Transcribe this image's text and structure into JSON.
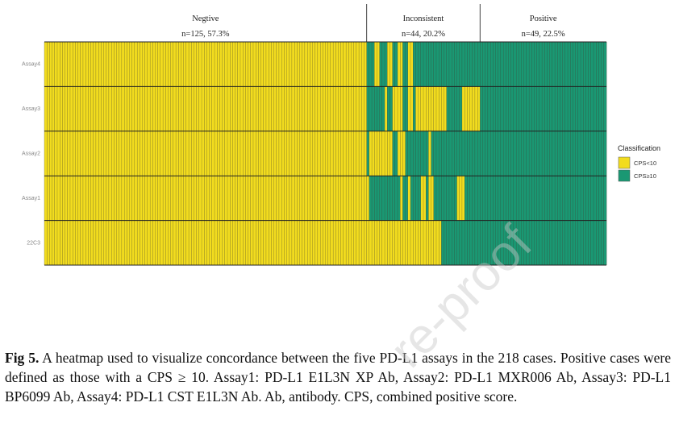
{
  "chart_data": {
    "type": "heatmap",
    "title": "",
    "rows": [
      "Assay4",
      "Assay3",
      "Assay2",
      "Assay1",
      "22C3"
    ],
    "n_cases": 218,
    "groups": [
      {
        "name": "Negtive",
        "stats": "n=125, 57.3%",
        "count": 125
      },
      {
        "name": "Inconsistent",
        "stats": "n=44, 20.2%",
        "count": 44
      },
      {
        "name": "Positive",
        "stats": "n=49, 22.5%",
        "count": 49
      }
    ],
    "legend": {
      "title": "Classification",
      "position": "right",
      "entries": [
        {
          "label": "CPS<10",
          "color": "#F2DC1E"
        },
        {
          "label": "CPS≥10",
          "color": "#1A9873"
        }
      ]
    },
    "row_runs": {
      "Assay4": [
        [
          0,
          125,
          0
        ],
        [
          125,
          3,
          1
        ],
        [
          128,
          2,
          0
        ],
        [
          130,
          3,
          1
        ],
        [
          133,
          2,
          0
        ],
        [
          135,
          2,
          1
        ],
        [
          137,
          2,
          0
        ],
        [
          139,
          2,
          1
        ],
        [
          141,
          2,
          0
        ],
        [
          143,
          26,
          1
        ],
        [
          169,
          49,
          1
        ]
      ],
      "Assay3": [
        [
          0,
          125,
          0
        ],
        [
          125,
          7,
          1
        ],
        [
          132,
          1,
          0
        ],
        [
          133,
          2,
          1
        ],
        [
          135,
          4,
          0
        ],
        [
          139,
          2,
          1
        ],
        [
          141,
          2,
          0
        ],
        [
          143,
          1,
          1
        ],
        [
          144,
          12,
          0
        ],
        [
          156,
          6,
          1
        ],
        [
          162,
          7,
          0
        ],
        [
          169,
          49,
          1
        ]
      ],
      "Assay2": [
        [
          0,
          125,
          0
        ],
        [
          125,
          1,
          1
        ],
        [
          126,
          8,
          0
        ],
        [
          134,
          1,
          1
        ],
        [
          134,
          1,
          0
        ],
        [
          135,
          2,
          1
        ],
        [
          137,
          3,
          0
        ],
        [
          140,
          9,
          1
        ],
        [
          149,
          1,
          0
        ],
        [
          150,
          19,
          1
        ],
        [
          169,
          49,
          1
        ]
      ],
      "Assay1": [
        [
          0,
          125,
          0
        ],
        [
          125,
          1,
          0
        ],
        [
          126,
          12,
          1
        ],
        [
          138,
          1,
          0
        ],
        [
          139,
          2,
          1
        ],
        [
          141,
          1,
          0
        ],
        [
          142,
          4,
          1
        ],
        [
          146,
          2,
          0
        ],
        [
          148,
          1,
          1
        ],
        [
          149,
          2,
          0
        ],
        [
          151,
          9,
          1
        ],
        [
          160,
          2,
          0
        ],
        [
          162,
          1,
          1
        ],
        [
          162,
          1,
          0
        ],
        [
          163,
          6,
          1
        ],
        [
          169,
          49,
          1
        ]
      ],
      "22C3": [
        [
          0,
          125,
          0
        ],
        [
          125,
          29,
          0
        ],
        [
          154,
          15,
          1
        ],
        [
          169,
          49,
          1
        ]
      ]
    },
    "value_map": {
      "0": "CPS<10",
      "1": "CPS≥10"
    }
  },
  "caption": {
    "label": "Fig 5.",
    "text": " A heatmap used to visualize concordance between the five PD-L1 assays in the 218 cases. Positive cases were defined as those with a CPS ≥ 10. Assay1: PD-L1 E1L3N XP Ab, Assay2: PD-L1 MXR006 Ab, Assay3: PD-L1 BP6099 Ab, Assay4: PD-L1 CST E1L3N Ab. Ab, antibody. CPS, combined positive score."
  },
  "watermark": "re-proof",
  "colors": {
    "negative": "#F2DC1E",
    "positive": "#1A9873",
    "grid": "#222222"
  }
}
